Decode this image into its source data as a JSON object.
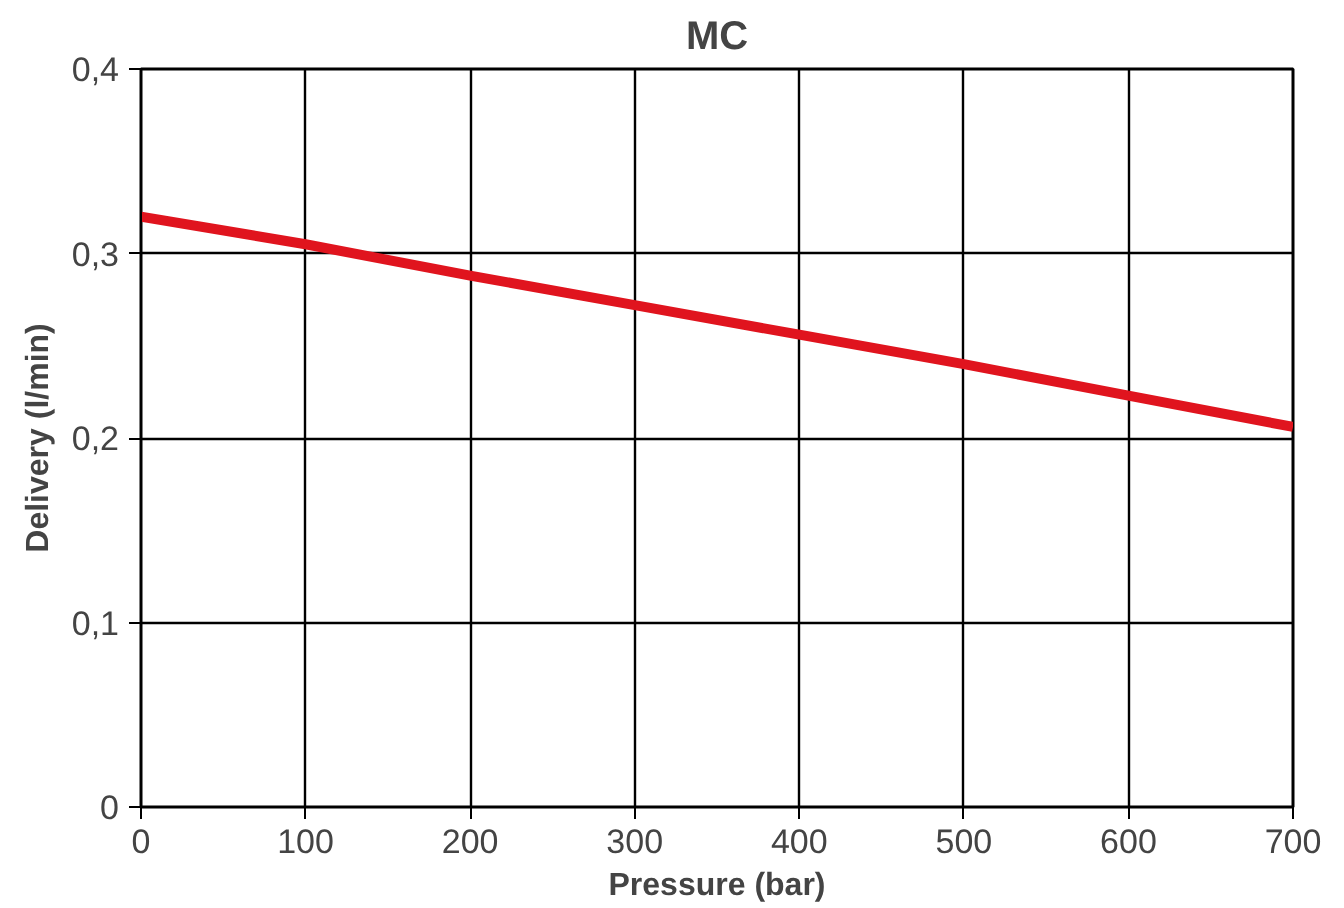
{
  "chart_data": {
    "type": "line",
    "title": "MC",
    "xlabel": "Pressure (bar)",
    "ylabel": "Delivery (l/min)",
    "x": [
      0,
      100,
      200,
      300,
      400,
      500,
      600,
      700
    ],
    "series": [
      {
        "color": "#e0141e",
        "values": [
          0.32,
          0.305,
          0.288,
          0.272,
          0.256,
          0.24,
          0.223,
          0.206
        ]
      }
    ],
    "xlim": [
      0,
      700
    ],
    "ylim": [
      0,
      0.4
    ],
    "xticks": [
      0,
      100,
      200,
      300,
      400,
      500,
      600,
      700
    ],
    "yticks": [
      0,
      {
        "value": 0.1,
        "label": "0,1"
      },
      {
        "value": 0.2,
        "label": "0,2"
      },
      {
        "value": 0.3,
        "label": "0,3"
      },
      {
        "value": 0.4,
        "label": "0,4"
      }
    ],
    "grid": true,
    "line_style": "solid"
  }
}
